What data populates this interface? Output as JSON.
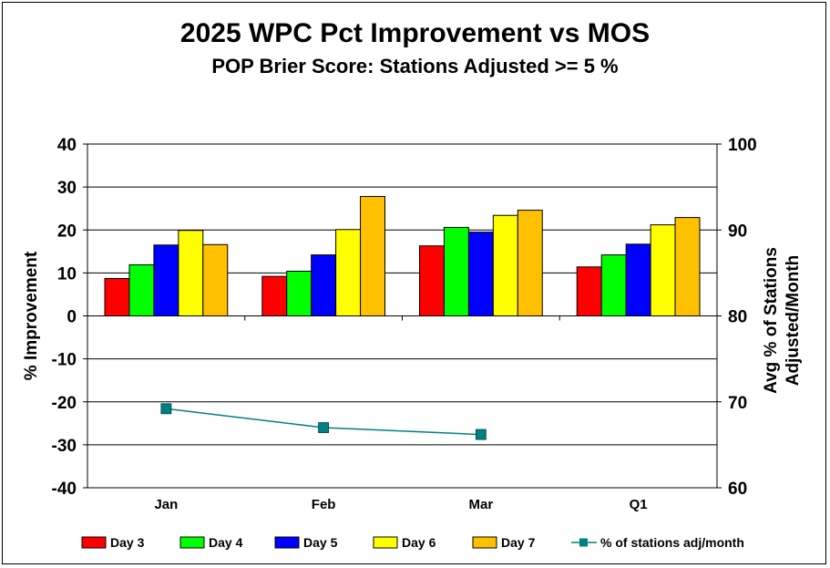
{
  "chart_data": {
    "type": "bar",
    "title": "2025 WPC Pct Improvement vs MOS",
    "subtitle": "POP Brier Score:  Stations Adjusted >= 5 %",
    "categories": [
      "Jan",
      "Feb",
      "Mar",
      "Q1"
    ],
    "ylabel": "% Improvement",
    "ylim": [
      -40,
      40
    ],
    "yticks": [
      "40",
      "30",
      "20",
      "10",
      "0",
      "-10",
      "-20",
      "-30",
      "-40"
    ],
    "y2label_line1": "Avg % of Stations",
    "y2label_line2": "Adjusted/Month",
    "y2lim": [
      60,
      100
    ],
    "y2ticks": [
      "100",
      "90",
      "80",
      "70",
      "60"
    ],
    "grid": true,
    "legend_position": "bottom",
    "series": [
      {
        "name": "Day 3",
        "color": "#ff0000",
        "values": [
          8.7,
          9.2,
          16.3,
          11.4
        ]
      },
      {
        "name": "Day 4",
        "color": "#00ff00",
        "values": [
          11.9,
          10.4,
          20.6,
          14.2
        ]
      },
      {
        "name": "Day 5",
        "color": "#0000ff",
        "values": [
          16.5,
          14.2,
          19.5,
          16.7
        ]
      },
      {
        "name": "Day 6",
        "color": "#ffff00",
        "values": [
          19.9,
          20.1,
          23.4,
          21.2
        ]
      },
      {
        "name": "Day 7",
        "color": "#ffc000",
        "values": [
          16.6,
          27.8,
          24.6,
          22.9
        ]
      }
    ],
    "line_series": {
      "name": "% of stations adj/month",
      "color": "#008080",
      "axis": "secondary",
      "values": [
        69.2,
        67.0,
        66.2
      ]
    }
  }
}
